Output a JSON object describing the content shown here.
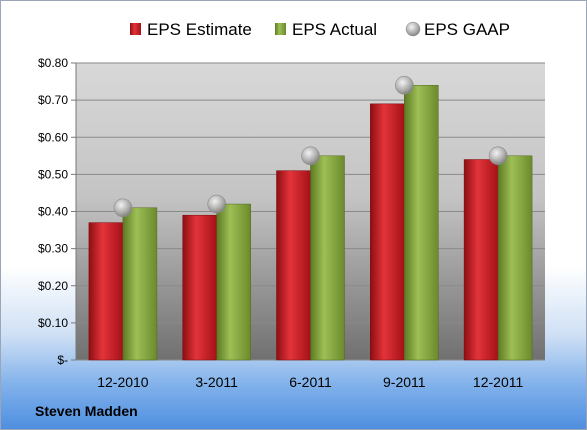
{
  "company": "Steven Madden",
  "colors": {
    "estimate": "#c8161e",
    "actual": "#86a83c",
    "gaap": "#b8b8b8"
  },
  "chart_data": {
    "type": "bar",
    "categories": [
      "12-2010",
      "3-2011",
      "6-2011",
      "9-2011",
      "12-2011"
    ],
    "series": [
      {
        "name": "EPS Estimate",
        "kind": "bar",
        "values": [
          0.37,
          0.39,
          0.51,
          0.69,
          0.54
        ]
      },
      {
        "name": "EPS Actual",
        "kind": "bar",
        "values": [
          0.41,
          0.42,
          0.55,
          0.74,
          0.55
        ]
      },
      {
        "name": "EPS GAAP",
        "kind": "marker",
        "values": [
          0.41,
          0.42,
          0.55,
          0.74,
          0.55
        ]
      }
    ],
    "yticks": [
      "$-",
      "$0.10",
      "$0.20",
      "$0.30",
      "$0.40",
      "$0.50",
      "$0.60",
      "$0.70",
      "$0.80"
    ],
    "ylim": [
      0,
      0.8
    ],
    "grid": true,
    "legend_position": "top"
  }
}
